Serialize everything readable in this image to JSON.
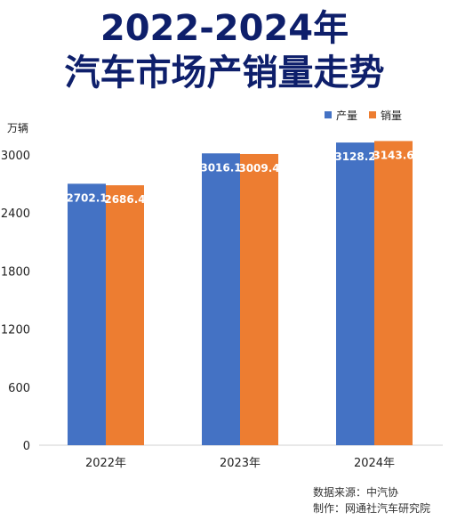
{
  "title": {
    "line1": "2022-2024年",
    "line2": "汽车市场产销量走势"
  },
  "colors": {
    "title": "#0e1f6b",
    "production": "#4472c4",
    "sales": "#ed7d31"
  },
  "chart_data": {
    "type": "bar",
    "categories": [
      "2022年",
      "2023年",
      "2024年"
    ],
    "series": [
      {
        "name": "产量",
        "values": [
          2702.1,
          3016.1,
          3128.2
        ]
      },
      {
        "name": "销量",
        "values": [
          2686.4,
          3009.4,
          3143.6
        ]
      }
    ],
    "ylabel": "万辆",
    "yticks": [
      0,
      600,
      1200,
      1800,
      2400,
      3000
    ],
    "ylim": [
      0,
      3000
    ],
    "legend": "top-right",
    "grid": false
  },
  "credits": {
    "source": "数据来源：中汽协",
    "producer": "制作：网通社汽车研究院"
  }
}
